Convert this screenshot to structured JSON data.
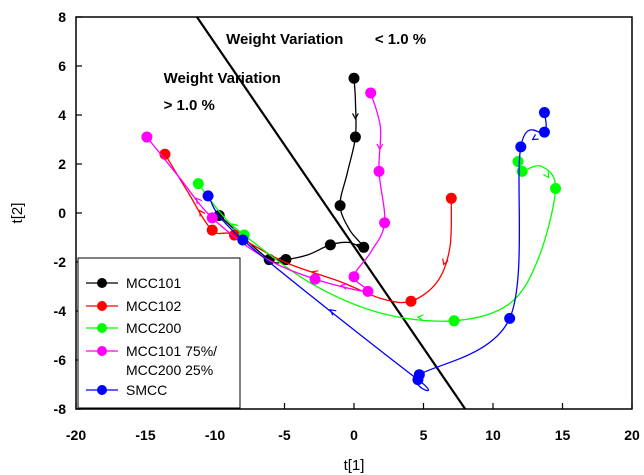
{
  "chart_data": {
    "type": "line",
    "title": "",
    "xlabel": "t[1]",
    "ylabel": "t[2]",
    "xlim": [
      -20,
      20
    ],
    "ylim": [
      -8,
      8
    ],
    "xticks": [
      -20,
      -15,
      -10,
      -5,
      0,
      5,
      10,
      15,
      20
    ],
    "yticks": [
      -8,
      -6,
      -4,
      -2,
      0,
      2,
      4,
      6,
      8
    ],
    "grid": false,
    "legend_position": "bottom-left",
    "annotations": [
      {
        "text": "Weight Variation",
        "x": -13.7,
        "y": 5.3
      },
      {
        "text": "> 1.0 %",
        "x": -13.7,
        "y": 4.2
      },
      {
        "text": "Weight Variation",
        "x": -9.2,
        "y": 6.9
      },
      {
        "text": "< 1.0 %",
        "x": 1.5,
        "y": 6.9
      }
    ],
    "boundary_line": {
      "x": [
        -11.3,
        8.0
      ],
      "y": [
        8.0,
        -8.0
      ],
      "color": "#000000"
    },
    "series": [
      {
        "name": "MCC101",
        "color": "#000000",
        "points": [
          [
            0.0,
            5.5
          ],
          [
            0.1,
            3.1
          ],
          [
            -1.0,
            0.3
          ],
          [
            0.7,
            -1.4
          ],
          [
            -1.7,
            -1.3
          ],
          [
            -4.9,
            -1.9
          ],
          [
            -6.1,
            -1.9
          ],
          [
            -9.7,
            -0.1
          ]
        ],
        "curve": [
          [
            0.0,
            5.5
          ],
          [
            0.1,
            4.6
          ],
          [
            0.1,
            3.1
          ],
          [
            -0.5,
            1.6
          ],
          [
            -1.0,
            0.3
          ],
          [
            -0.3,
            -0.7
          ],
          [
            0.7,
            -1.4
          ],
          [
            -0.4,
            -1.2
          ],
          [
            -1.7,
            -1.3
          ],
          [
            -3.3,
            -1.7
          ],
          [
            -4.9,
            -1.9
          ],
          [
            -6.1,
            -1.9
          ],
          [
            -9.7,
            -0.1
          ]
        ]
      },
      {
        "name": "MCC102",
        "color": "#ff0000",
        "points": [
          [
            7.0,
            0.6
          ],
          [
            4.1,
            -3.6
          ],
          [
            -8.6,
            -0.9
          ],
          [
            -10.2,
            -0.7
          ],
          [
            -13.6,
            2.4
          ]
        ],
        "curve": [
          [
            7.0,
            0.6
          ],
          [
            6.9,
            -1.4
          ],
          [
            6.0,
            -2.8
          ],
          [
            4.1,
            -3.6
          ],
          [
            2.0,
            -3.5
          ],
          [
            -1.0,
            -2.8
          ],
          [
            -5.0,
            -2.0
          ],
          [
            -8.6,
            -0.9
          ],
          [
            -10.2,
            -0.7
          ],
          [
            -12.0,
            0.9
          ],
          [
            -13.6,
            2.4
          ]
        ]
      },
      {
        "name": "MCC200",
        "color": "#00ff00",
        "points": [
          [
            14.5,
            1.0
          ],
          [
            12.1,
            1.7
          ],
          [
            11.8,
            2.1
          ],
          [
            7.2,
            -4.4
          ],
          [
            -7.9,
            -0.9
          ],
          [
            -11.2,
            1.2
          ]
        ],
        "curve": [
          [
            12.1,
            1.7
          ],
          [
            13.5,
            1.9
          ],
          [
            14.5,
            1.0
          ],
          [
            13.3,
            -1.8
          ],
          [
            11.2,
            -3.7
          ],
          [
            7.2,
            -4.4
          ],
          [
            2.0,
            -4.1
          ],
          [
            -3.0,
            -2.9
          ],
          [
            -7.9,
            -0.9
          ],
          [
            -9.6,
            0.0
          ],
          [
            -11.2,
            1.2
          ]
        ]
      },
      {
        "name": "MCC101 75%/\nMCC200 25%",
        "color": "#ff00ff",
        "points": [
          [
            1.2,
            4.9
          ],
          [
            1.8,
            1.7
          ],
          [
            2.2,
            -0.4
          ],
          [
            0.0,
            -2.6
          ],
          [
            1.0,
            -3.2
          ],
          [
            -2.8,
            -2.7
          ],
          [
            -10.2,
            -0.2
          ],
          [
            -14.9,
            3.1
          ]
        ],
        "curve": [
          [
            1.2,
            4.9
          ],
          [
            1.9,
            3.5
          ],
          [
            1.8,
            1.7
          ],
          [
            2.2,
            -0.4
          ],
          [
            1.2,
            -1.6
          ],
          [
            0.0,
            -2.6
          ],
          [
            1.0,
            -3.2
          ],
          [
            -2.8,
            -2.7
          ],
          [
            -6.5,
            -1.8
          ],
          [
            -10.2,
            -0.2
          ],
          [
            -12.5,
            1.4
          ],
          [
            -14.9,
            3.1
          ]
        ]
      },
      {
        "name": "SMCC",
        "color": "#0000ff",
        "points": [
          [
            13.7,
            4.1
          ],
          [
            13.7,
            3.3
          ],
          [
            12.0,
            2.7
          ],
          [
            11.2,
            -4.3
          ],
          [
            4.7,
            -6.6
          ],
          [
            4.6,
            -6.8
          ],
          [
            -8.0,
            -1.1
          ],
          [
            -10.5,
            0.7
          ]
        ],
        "curve": [
          [
            13.7,
            4.1
          ],
          [
            13.7,
            3.3
          ],
          [
            12.0,
            2.7
          ],
          [
            11.2,
            -4.3
          ],
          [
            4.7,
            -6.6
          ],
          [
            4.6,
            -6.8
          ],
          [
            -8.0,
            -1.1
          ],
          [
            -10.5,
            0.7
          ]
        ]
      }
    ]
  }
}
